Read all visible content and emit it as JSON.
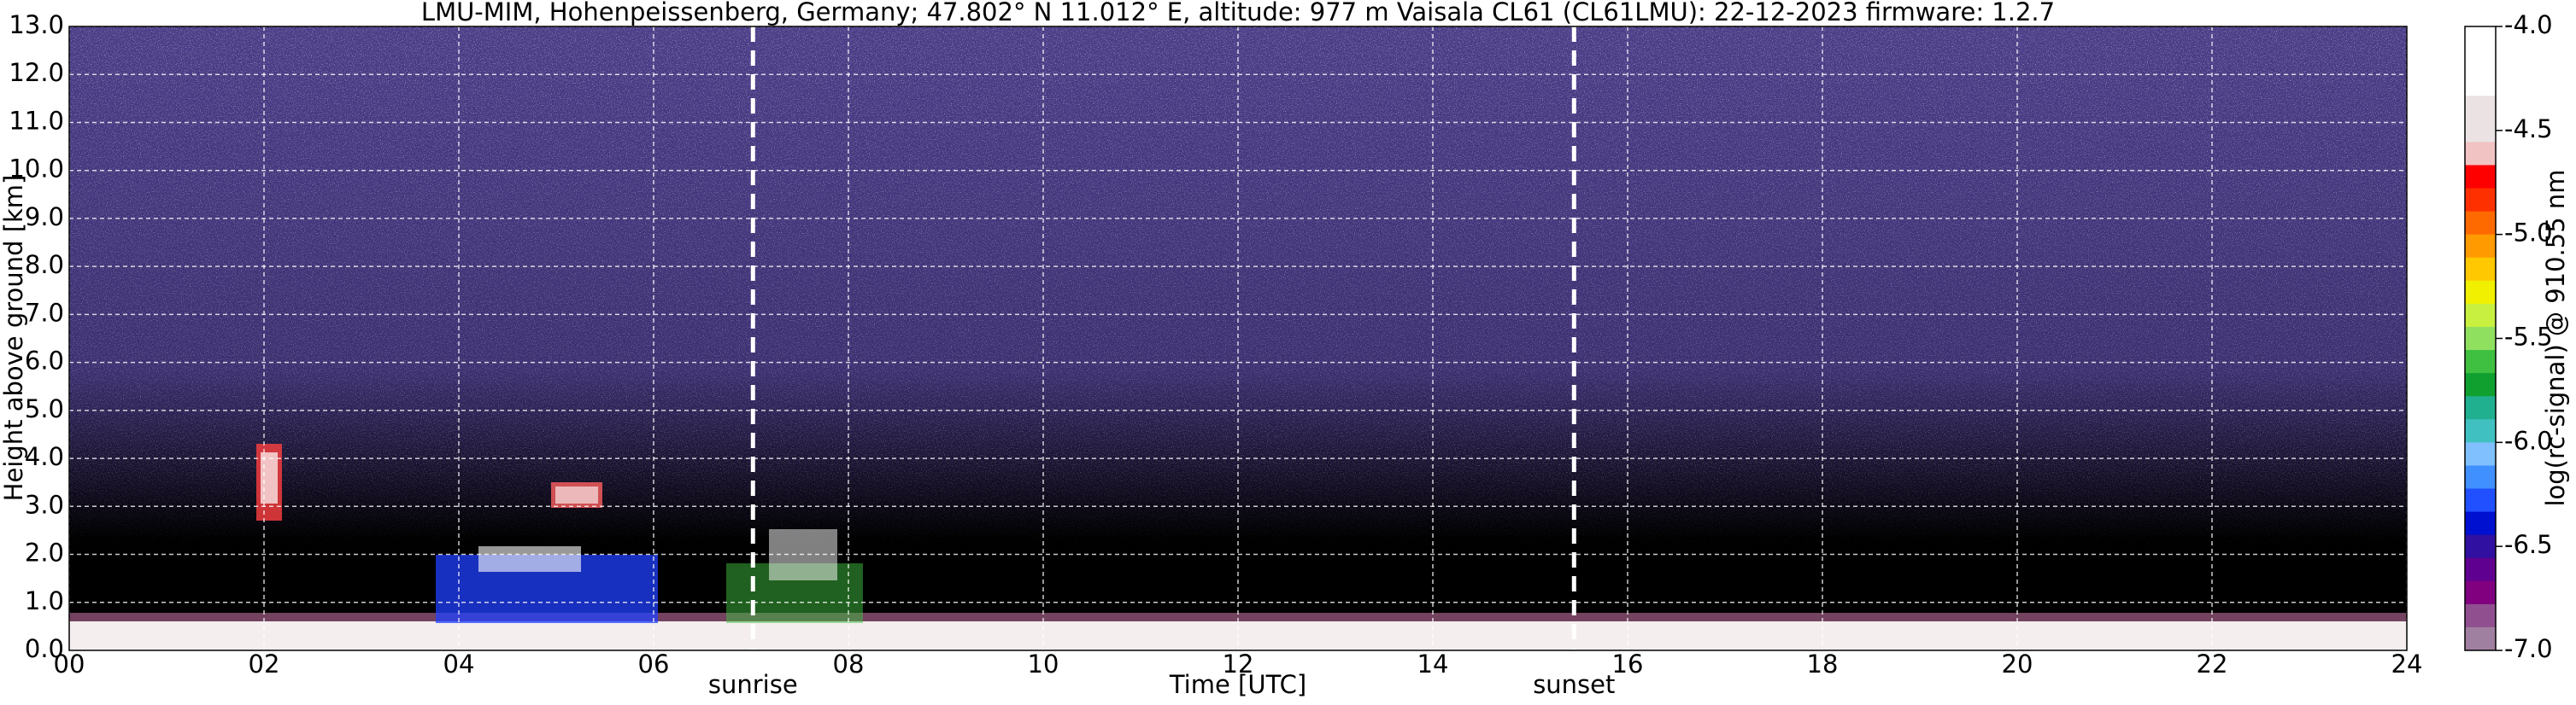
{
  "chart_data": {
    "type": "heatmap",
    "title": "LMU-MIM, Hohenpeissenberg, Germany; 47.802° N 11.012° E, altitude: 977 m    Vaisala CL61 (CL61LMU): 22-12-2023    firmware: 1.2.7",
    "xlabel": "Time [UTC]",
    "ylabel": "Height above ground [km]",
    "xlim": [
      0,
      24
    ],
    "xticks": [
      {
        "value": 0,
        "label": "00"
      },
      {
        "value": 2,
        "label": "02"
      },
      {
        "value": 4,
        "label": "04"
      },
      {
        "value": 6,
        "label": "06"
      },
      {
        "value": 8,
        "label": "08"
      },
      10,
      12,
      14,
      16,
      18,
      20,
      22,
      24
    ],
    "ylim": [
      0,
      13
    ],
    "yticks": [
      {
        "value": 0,
        "label": "0.0"
      },
      {
        "value": 1,
        "label": "1.0"
      },
      {
        "value": 2,
        "label": "2.0"
      },
      {
        "value": 3,
        "label": "3.0"
      },
      {
        "value": 4,
        "label": "4.0"
      },
      {
        "value": 5,
        "label": "5.0"
      },
      {
        "value": 6,
        "label": "6.0"
      },
      {
        "value": 7,
        "label": "7.0"
      },
      {
        "value": 8,
        "label": "8.0"
      },
      {
        "value": 9,
        "label": "9.0"
      },
      {
        "value": 10,
        "label": "10.0"
      },
      {
        "value": 11,
        "label": "11.0"
      },
      {
        "value": 12,
        "label": "12.0"
      },
      {
        "value": 13,
        "label": "13.0"
      }
    ],
    "grid": true,
    "annotations": [
      {
        "text": "sunrise",
        "x": 7.02
      },
      {
        "text": "sunset",
        "x": 15.45
      }
    ],
    "colorbar": {
      "label": "log(rc-signal) @ 910.55 nm",
      "lim": [
        -7,
        -4
      ],
      "ticks": [
        {
          "value": -4,
          "label": "-4.0"
        },
        {
          "value": -4.5,
          "label": "-4.5"
        },
        {
          "value": -5,
          "label": "-5.0"
        },
        {
          "value": -5.5,
          "label": "-5.5"
        },
        {
          "value": -6,
          "label": "-6.0"
        },
        {
          "value": -6.5,
          "label": "-6.5"
        },
        {
          "value": -7,
          "label": "-7.0"
        }
      ],
      "colors": [
        "#ffffff",
        "#ffffff",
        "#ffffff",
        "#ebe3e3",
        "#ebe3e3",
        "#f2c3c3",
        "#ff0000",
        "#ff3000",
        "#ff6a00",
        "#ff9a00",
        "#ffc800",
        "#f0f000",
        "#c8f040",
        "#90e060",
        "#40c040",
        "#10a030",
        "#20b090",
        "#40c0c0",
        "#80c0ff",
        "#4090ff",
        "#2050ff",
        "#0010d0",
        "#3010a0",
        "#600090",
        "#800080",
        "#905090",
        "#a080a0"
      ]
    }
  }
}
